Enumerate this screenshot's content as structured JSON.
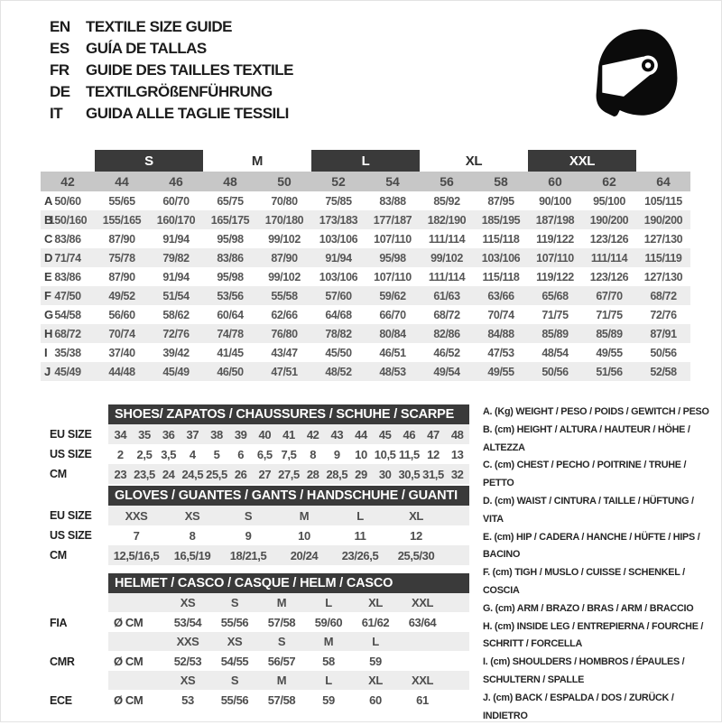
{
  "header": {
    "languages": [
      {
        "code": "EN",
        "text": "TEXTILE SIZE GUIDE"
      },
      {
        "code": "ES",
        "text": "GUÍA DE TALLAS"
      },
      {
        "code": "FR",
        "text": "GUIDE DES TAILLES TEXTILE"
      },
      {
        "code": "DE",
        "text": "TEXTILGRÖßENFÜHRUNG"
      },
      {
        "code": "IT",
        "text": "GUIDA ALLE TAGLIE TESSILI"
      }
    ],
    "helmet_icon": "racing-helmet"
  },
  "colors": {
    "dark_bar": "#3a3a3a",
    "header_row": "#c7c7c7",
    "alt_row": "#ededed",
    "cell_text": "#565656"
  },
  "size_table": {
    "bands": [
      {
        "label": "S",
        "highlighted": true,
        "columns": [
          "44",
          "46"
        ]
      },
      {
        "label": "M",
        "highlighted": false,
        "columns": [
          "48",
          "50"
        ]
      },
      {
        "label": "L",
        "highlighted": true,
        "columns": [
          "52",
          "54"
        ]
      },
      {
        "label": "XL",
        "highlighted": false,
        "columns": [
          "56",
          "58"
        ]
      },
      {
        "label": "XXL",
        "highlighted": true,
        "columns": [
          "60",
          "62"
        ]
      }
    ],
    "columns": [
      "42",
      "44",
      "46",
      "48",
      "50",
      "52",
      "54",
      "56",
      "58",
      "60",
      "62",
      "64"
    ],
    "rows": [
      {
        "label": "A",
        "values": [
          "50/60",
          "55/65",
          "60/70",
          "65/75",
          "70/80",
          "75/85",
          "83/88",
          "85/92",
          "87/95",
          "90/100",
          "95/100",
          "105/115"
        ]
      },
      {
        "label": "B",
        "values": [
          "150/160",
          "155/165",
          "160/170",
          "165/175",
          "170/180",
          "173/183",
          "177/187",
          "182/190",
          "185/195",
          "187/198",
          "190/200",
          "190/200"
        ]
      },
      {
        "label": "C",
        "values": [
          "83/86",
          "87/90",
          "91/94",
          "95/98",
          "99/102",
          "103/106",
          "107/110",
          "111/114",
          "115/118",
          "119/122",
          "123/126",
          "127/130"
        ]
      },
      {
        "label": "D",
        "values": [
          "71/74",
          "75/78",
          "79/82",
          "83/86",
          "87/90",
          "91/94",
          "95/98",
          "99/102",
          "103/106",
          "107/110",
          "111/114",
          "115/119"
        ]
      },
      {
        "label": "E",
        "values": [
          "83/86",
          "87/90",
          "91/94",
          "95/98",
          "99/102",
          "103/106",
          "107/110",
          "111/114",
          "115/118",
          "119/122",
          "123/126",
          "127/130"
        ]
      },
      {
        "label": "F",
        "values": [
          "47/50",
          "49/52",
          "51/54",
          "53/56",
          "55/58",
          "57/60",
          "59/62",
          "61/63",
          "63/66",
          "65/68",
          "67/70",
          "68/72"
        ]
      },
      {
        "label": "G",
        "values": [
          "54/58",
          "56/60",
          "58/62",
          "60/64",
          "62/66",
          "64/68",
          "66/70",
          "68/72",
          "70/74",
          "71/75",
          "71/75",
          "72/76"
        ]
      },
      {
        "label": "H",
        "values": [
          "68/72",
          "70/74",
          "72/76",
          "74/78",
          "76/80",
          "78/82",
          "80/84",
          "82/86",
          "84/88",
          "85/89",
          "85/89",
          "87/91"
        ]
      },
      {
        "label": "I",
        "values": [
          "35/38",
          "37/40",
          "39/42",
          "41/45",
          "43/47",
          "45/50",
          "46/51",
          "46/52",
          "47/53",
          "48/54",
          "49/55",
          "50/56"
        ]
      },
      {
        "label": "J",
        "values": [
          "45/49",
          "44/48",
          "45/49",
          "46/50",
          "47/51",
          "48/52",
          "48/53",
          "49/54",
          "49/55",
          "50/56",
          "51/56",
          "52/58"
        ]
      }
    ]
  },
  "shoes_table": {
    "title": "SHOES/ ZAPATOS / CHAUSSURES / SCHUHE / SCARPE",
    "row_labels": [
      "EU SIZE",
      "US SIZE",
      "CM"
    ],
    "rows": [
      [
        "34",
        "35",
        "36",
        "37",
        "38",
        "39",
        "40",
        "41",
        "42",
        "43",
        "44",
        "45",
        "46",
        "47",
        "48"
      ],
      [
        "2",
        "2,5",
        "3,5",
        "4",
        "5",
        "6",
        "6,5",
        "7,5",
        "8",
        "9",
        "10",
        "10,5",
        "11,5",
        "12",
        "13"
      ],
      [
        "23",
        "23,5",
        "24",
        "24,5",
        "25,5",
        "26",
        "27",
        "27,5",
        "28",
        "28,5",
        "29",
        "30",
        "30,5",
        "31,5",
        "32"
      ]
    ]
  },
  "gloves_table": {
    "title": "GLOVES / GUANTES / GANTS / HANDSCHUHE / GUANTI",
    "row_labels": [
      "EU SIZE",
      "US SIZE",
      "CM"
    ],
    "rows": [
      [
        "XXS",
        "XS",
        "S",
        "M",
        "L",
        "XL"
      ],
      [
        "7",
        "8",
        "9",
        "10",
        "11",
        "12"
      ],
      [
        "12,5/16,5",
        "16,5/19",
        "18/21,5",
        "20/24",
        "23/26,5",
        "25,5/30"
      ]
    ]
  },
  "helmet_table": {
    "title": "HELMET / CASCO / CASQUE / HELM / CASCO",
    "diameter_label": "Ø CM",
    "sections": [
      {
        "label": "FIA",
        "sizes": [
          "XS",
          "S",
          "M",
          "L",
          "XL",
          "XXL"
        ],
        "values": [
          "53/54",
          "55/56",
          "57/58",
          "59/60",
          "61/62",
          "63/64"
        ]
      },
      {
        "label": "CMR",
        "sizes": [
          "XXS",
          "XS",
          "S",
          "M",
          "L"
        ],
        "values": [
          "52/53",
          "54/55",
          "56/57",
          "58",
          "59"
        ]
      },
      {
        "label": "ECE",
        "sizes": [
          "XS",
          "S",
          "M",
          "L",
          "XL",
          "XXL"
        ],
        "values": [
          "53",
          "55/56",
          "57/58",
          "59",
          "60",
          "61"
        ]
      }
    ]
  },
  "legend": [
    "A. (Kg) WEIGHT / PESO / POIDS / GEWITCH / PESO",
    "B. (cm) HEIGHT / ALTURA / HAUTEUR / HÖHE / ALTEZZA",
    "C. (cm) CHEST / PECHO / POITRINE / TRUHE / PETTO",
    "D. (cm) WAIST / CINTURA / TAILLE / HÜFTUNG / VITA",
    "E. (cm) HIP / CADERA / HANCHE / HÜFTE / HIPS / BACINO",
    "F. (cm) TIGH / MUSLO / CUISSE / SCHENKEL / COSCIA",
    "G. (cm) ARM / BRAZO / BRAS / ARM / BRACCIO",
    "H. (cm) INSIDE LEG / ENTREPIERNA / FOURCHE / SCHRITT / FORCELLA",
    "I. (cm) SHOULDERS / HOMBROS / ÉPAULES / SCHULTERN / SPALLE",
    "J. (cm) BACK / ESPALDA / DOS / ZURÜCK / INDIETRO"
  ]
}
